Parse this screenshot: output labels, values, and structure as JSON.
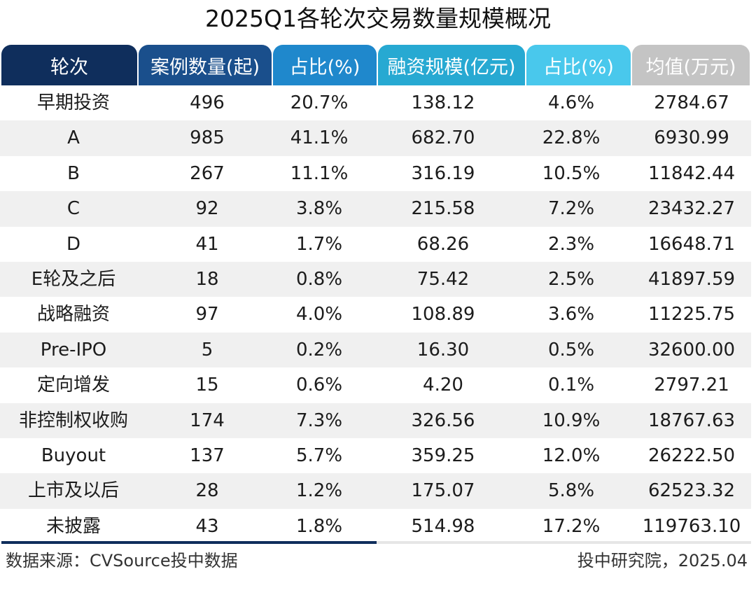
{
  "title": "2025Q1各轮次交易数量规模概况",
  "columns": [
    {
      "label": "轮次",
      "color": "#0f2e5c"
    },
    {
      "label": "案例数量(起)",
      "color": "#1a4f8c"
    },
    {
      "label": "占比(%)",
      "color": "#1f88cc"
    },
    {
      "label": "融资规模(亿元)",
      "color": "#27a9d2"
    },
    {
      "label": "占比(%)",
      "color": "#49c8ec"
    },
    {
      "label": "均值(万元)",
      "color": "#c4c4c4"
    }
  ],
  "chart_data": {
    "type": "table",
    "title": "2025Q1各轮次交易数量规模概况",
    "headers": [
      "轮次",
      "案例数量(起)",
      "占比(%)",
      "融资规模(亿元)",
      "占比(%)",
      "均值(万元)"
    ],
    "rows": [
      [
        "早期投资",
        "496",
        "20.7%",
        "138.12",
        "4.6%",
        "2784.67"
      ],
      [
        "A",
        "985",
        "41.1%",
        "682.70",
        "22.8%",
        "6930.99"
      ],
      [
        "B",
        "267",
        "11.1%",
        "316.19",
        "10.5%",
        "11842.44"
      ],
      [
        "C",
        "92",
        "3.8%",
        "215.58",
        "7.2%",
        "23432.27"
      ],
      [
        "D",
        "41",
        "1.7%",
        "68.26",
        "2.3%",
        "16648.71"
      ],
      [
        "E轮及之后",
        "18",
        "0.8%",
        "75.42",
        "2.5%",
        "41897.59"
      ],
      [
        "战略融资",
        "97",
        "4.0%",
        "108.89",
        "3.6%",
        "11225.75"
      ],
      [
        "Pre-IPO",
        "5",
        "0.2%",
        "16.30",
        "0.5%",
        "32600.00"
      ],
      [
        "定向增发",
        "15",
        "0.6%",
        "4.20",
        "0.1%",
        "2797.21"
      ],
      [
        "非控制权收购",
        "174",
        "7.3%",
        "326.56",
        "10.9%",
        "18767.63"
      ],
      [
        "Buyout",
        "137",
        "5.7%",
        "359.25",
        "12.0%",
        "26222.50"
      ],
      [
        "上市及以后",
        "28",
        "1.2%",
        "175.07",
        "5.8%",
        "62523.32"
      ],
      [
        "未披露",
        "43",
        "1.8%",
        "514.98",
        "17.2%",
        "119763.10"
      ]
    ]
  },
  "footer": {
    "source": "数据来源：CVSource投中数据",
    "credit": "投中研究院，2025.04",
    "line_dark": "#0f2e5c",
    "line_light": "#e6e6e6"
  }
}
